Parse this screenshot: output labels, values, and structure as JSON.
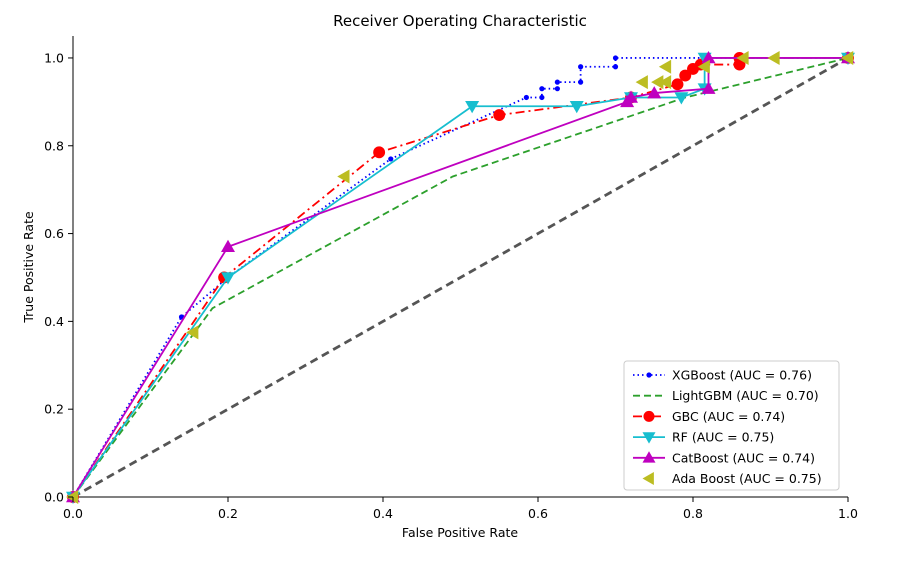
{
  "chart_data": {
    "type": "line",
    "title": "Receiver Operating Characteristic",
    "xlabel": "False Positive Rate",
    "ylabel": "True Positive Rate",
    "xlim": [
      0.0,
      1.0
    ],
    "ylim": [
      0.0,
      1.05
    ],
    "xticks": [
      0.0,
      0.2,
      0.4,
      0.6,
      0.8,
      1.0
    ],
    "yticks": [
      0.0,
      0.2,
      0.4,
      0.6,
      0.8,
      1.0
    ],
    "xtick_labels": [
      "0.0",
      "0.2",
      "0.4",
      "0.6",
      "0.8",
      "1.0"
    ],
    "ytick_labels": [
      "0.0",
      "0.2",
      "0.4",
      "0.6",
      "0.8",
      "1.0"
    ],
    "grid": false,
    "legend_position": "bottom-right",
    "diagonal": {
      "x": [
        0,
        1
      ],
      "y": [
        0,
        1
      ],
      "color": "#555555",
      "style": "dashed"
    },
    "series": [
      {
        "name": "XGBoost (AUC = 0.76)",
        "color": "#0000ff",
        "line_style": "dotted",
        "marker": "dot",
        "x": [
          0.0,
          0.14,
          0.2,
          0.41,
          0.585,
          0.605,
          0.605,
          0.625,
          0.625,
          0.655,
          0.655,
          0.7,
          0.7,
          0.82,
          1.0
        ],
        "y": [
          0.0,
          0.41,
          0.5,
          0.77,
          0.91,
          0.91,
          0.93,
          0.93,
          0.945,
          0.945,
          0.98,
          0.98,
          1.0,
          1.0,
          1.0
        ]
      },
      {
        "name": "LightGBM (AUC = 0.70)",
        "color": "#2ca02c",
        "line_style": "dashed",
        "marker": "none",
        "x": [
          0.0,
          0.18,
          0.49,
          0.79,
          1.0
        ],
        "y": [
          0.0,
          0.43,
          0.73,
          0.91,
          1.0
        ]
      },
      {
        "name": "GBC (AUC = 0.74)",
        "color": "#ff0000",
        "line_style": "dashdot",
        "marker": "circle",
        "x": [
          0.0,
          0.195,
          0.395,
          0.55,
          0.72,
          0.78,
          0.79,
          0.8,
          0.81,
          0.86,
          0.86,
          1.0
        ],
        "y": [
          0.0,
          0.5,
          0.785,
          0.87,
          0.91,
          0.94,
          0.96,
          0.975,
          0.985,
          0.985,
          1.0,
          1.0
        ]
      },
      {
        "name": "RF (AUC = 0.75)",
        "color": "#17becf",
        "line_style": "solid",
        "marker": "triangle-down",
        "x": [
          0.0,
          0.2,
          0.515,
          0.65,
          0.72,
          0.785,
          0.815,
          0.815,
          1.0
        ],
        "y": [
          0.0,
          0.5,
          0.89,
          0.89,
          0.91,
          0.91,
          0.93,
          1.0,
          1.0
        ]
      },
      {
        "name": "CatBoost (AUC = 0.74)",
        "color": "#bf00bf",
        "line_style": "solid",
        "marker": "triangle-up",
        "x": [
          0.0,
          0.2,
          0.715,
          0.72,
          0.75,
          0.82,
          0.82,
          1.0
        ],
        "y": [
          0.0,
          0.57,
          0.9,
          0.91,
          0.92,
          0.93,
          1.0,
          1.0
        ]
      },
      {
        "name": "Ada Boost (AUC = 0.75)",
        "color": "#bcbd22",
        "line_style": "none",
        "marker": "triangle-left",
        "x": [
          0.0,
          0.155,
          0.35,
          0.735,
          0.755,
          0.765,
          0.765,
          0.815,
          0.865,
          0.905,
          1.0
        ],
        "y": [
          0.0,
          0.375,
          0.73,
          0.945,
          0.945,
          0.98,
          0.945,
          0.98,
          1.0,
          1.0,
          1.0
        ]
      }
    ]
  }
}
